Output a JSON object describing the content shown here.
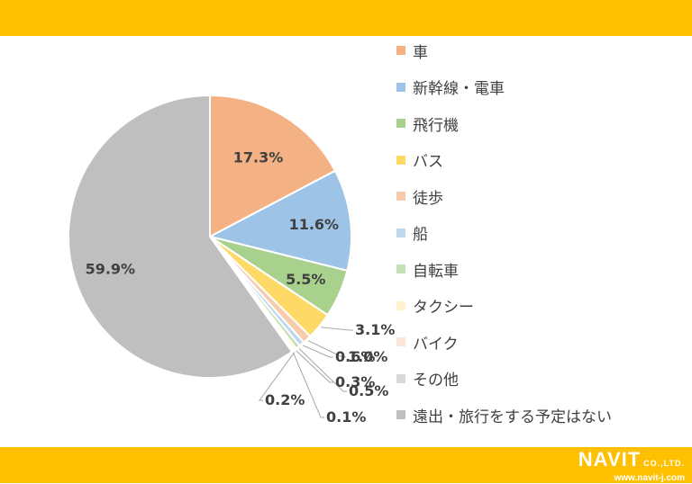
{
  "chart_data": {
    "type": "pie",
    "title": "",
    "slices": [
      {
        "label": "車",
        "value": 17.3,
        "display": "17.3%",
        "color": "#f4b183"
      },
      {
        "label": "新幹線・電車",
        "value": 11.6,
        "display": "11.6%",
        "color": "#9dc3e6"
      },
      {
        "label": "飛行機",
        "value": 5.5,
        "display": "5.5%",
        "color": "#a9d18e"
      },
      {
        "label": "バス",
        "value": 3.1,
        "display": "3.1%",
        "color": "#ffd966"
      },
      {
        "label": "徒歩",
        "value": 1.0,
        "display": "1.0%",
        "color": "#f8cbad"
      },
      {
        "label": "船",
        "value": 0.6,
        "display": "0.6%",
        "color": "#bdd7ee"
      },
      {
        "label": "自転車",
        "value": 0.5,
        "display": "0.5%",
        "color": "#c5e0b4"
      },
      {
        "label": "タクシー",
        "value": 0.3,
        "display": "0.3%",
        "color": "#fff2cc"
      },
      {
        "label": "バイク",
        "value": 0.2,
        "display": "0.2%",
        "color": "#fbe5d6"
      },
      {
        "label": "その他",
        "value": 0.1,
        "display": "0.1%",
        "color": "#d9d9d9"
      },
      {
        "label": "遠出・旅行をする予定はない",
        "value": 59.9,
        "display": "59.9%",
        "color": "#bfbfbf"
      }
    ],
    "legend_position": "right"
  },
  "logo": {
    "name": "NAVIT",
    "suffix": "CO.,LTD.",
    "url": "www.navit-j.com"
  }
}
